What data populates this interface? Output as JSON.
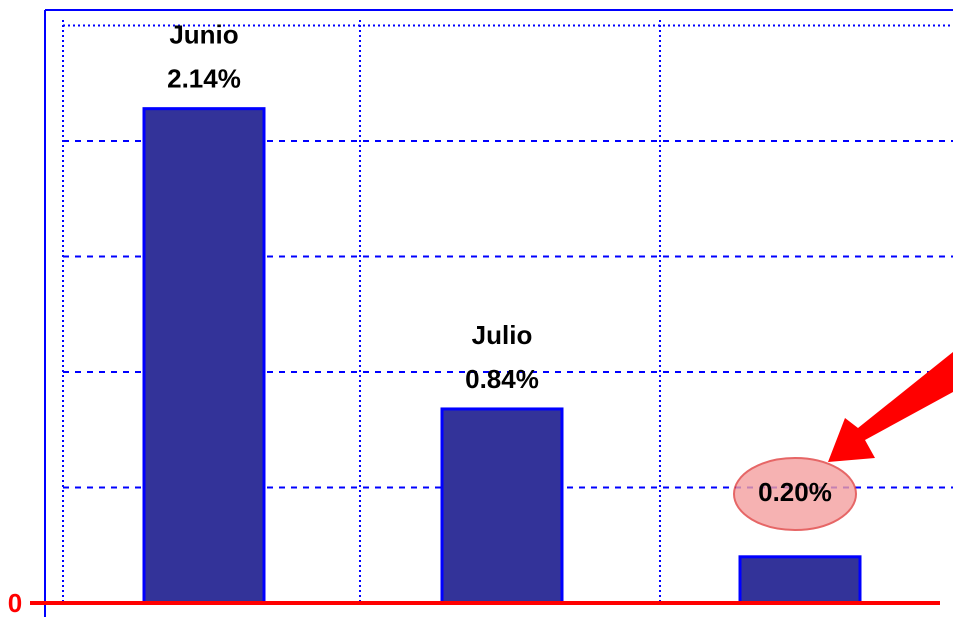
{
  "chart_data": {
    "type": "bar",
    "categories": [
      "Junio",
      "Julio",
      null
    ],
    "values": [
      2.14,
      0.84,
      0.2
    ],
    "value_labels": [
      "2.14%",
      "0.84%",
      "0.20%"
    ],
    "color": "#333399",
    "ylim": [
      0,
      2.5
    ],
    "yticks": [
      0
    ],
    "grid_lines": [
      0.5,
      1,
      1.5,
      2,
      2.5
    ]
  }
}
